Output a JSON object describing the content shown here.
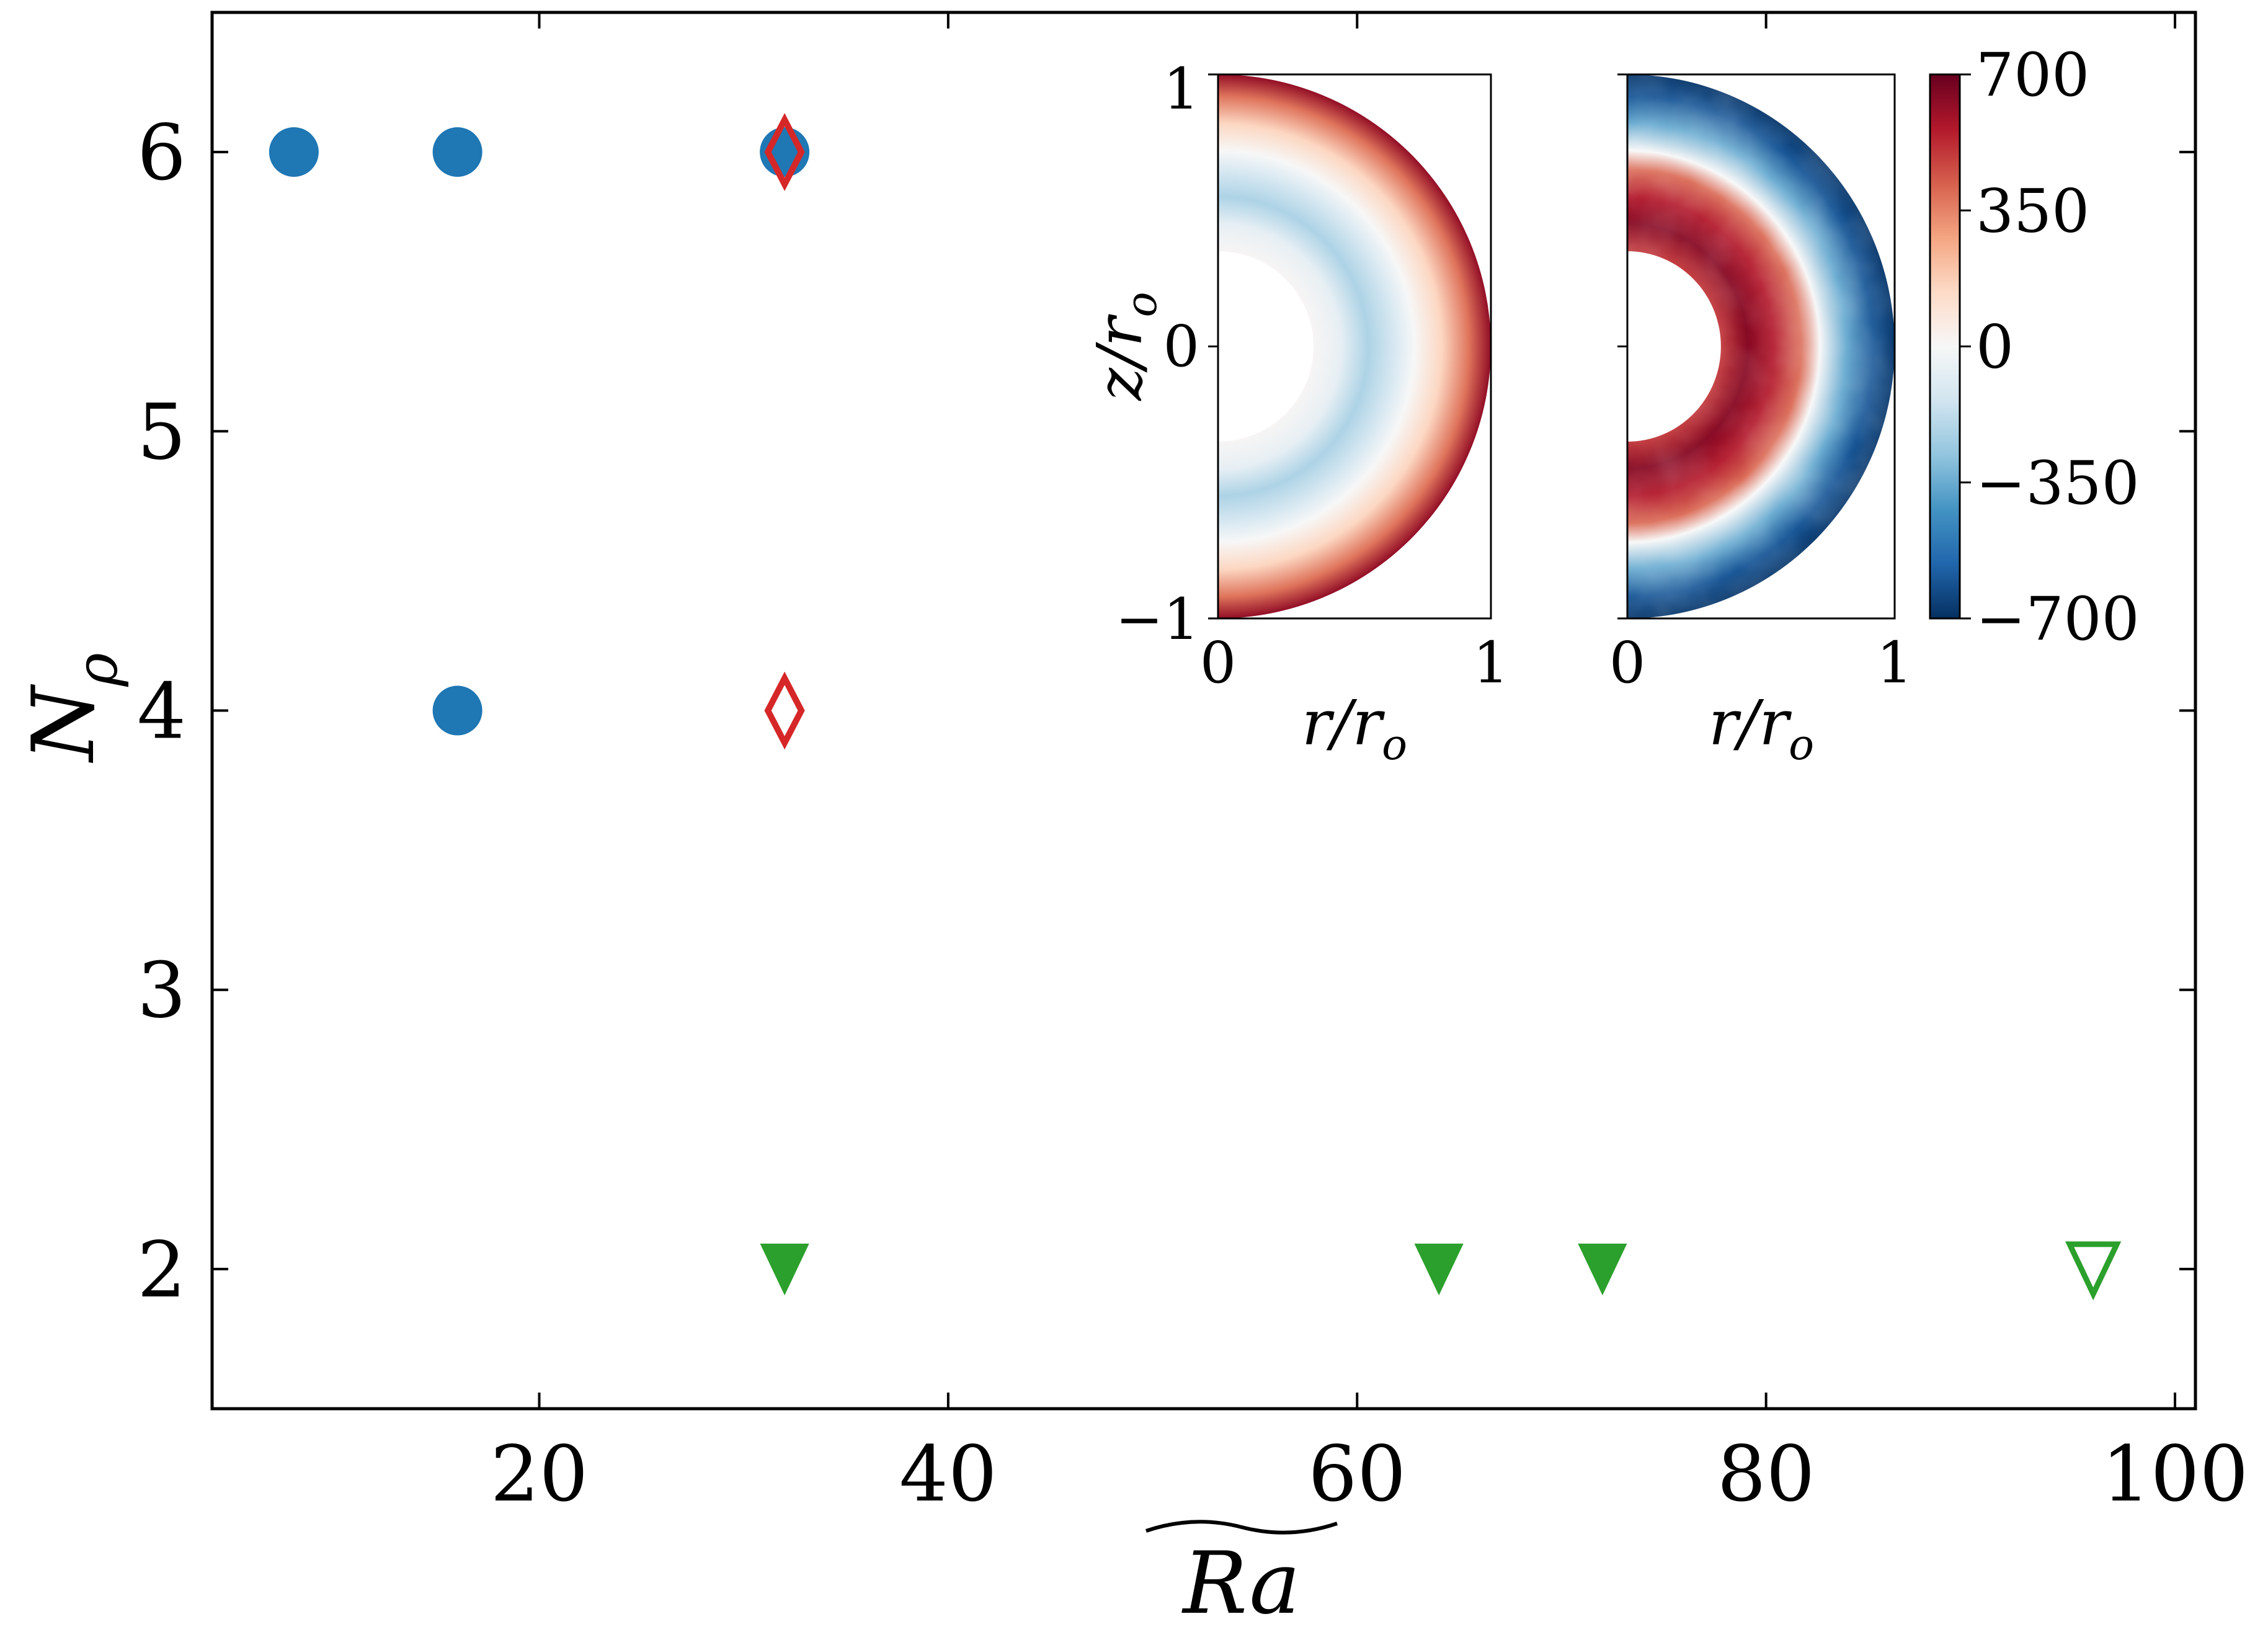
{
  "chart_data": {
    "type": "scatter",
    "title": "",
    "xlabel": "Ra",
    "xlabel_decoration": "wide tilde over label",
    "ylabel": "N",
    "ylabel_subscript": "ρ",
    "xlim": [
      4,
      101
    ],
    "ylim": [
      1.5,
      6.5
    ],
    "x_ticks": [
      20,
      40,
      60,
      80,
      100
    ],
    "x_tick_labels": [
      "20",
      "40",
      "60",
      "80",
      "100"
    ],
    "y_ticks": [
      2,
      3,
      4,
      5,
      6
    ],
    "y_tick_labels": [
      "2",
      "3",
      "4",
      "5",
      "6"
    ],
    "grid": false,
    "series": [
      {
        "name": "filled-circles",
        "marker": "circle",
        "filled": true,
        "color": "#1f77b4",
        "points": [
          {
            "x": 8,
            "y": 6
          },
          {
            "x": 16,
            "y": 6
          },
          {
            "x": 16,
            "y": 4
          },
          {
            "x": 32,
            "y": 6
          }
        ]
      },
      {
        "name": "open-diamonds",
        "marker": "diamond",
        "filled": false,
        "color": "#d62728",
        "points": [
          {
            "x": 32,
            "y": 6
          },
          {
            "x": 32,
            "y": 4
          }
        ]
      },
      {
        "name": "filled-triangles",
        "marker": "triangle-down",
        "filled": true,
        "color": "#2ca02c",
        "points": [
          {
            "x": 32,
            "y": 2
          },
          {
            "x": 64,
            "y": 2
          },
          {
            "x": 72,
            "y": 2
          }
        ]
      },
      {
        "name": "open-triangles",
        "marker": "triangle-down",
        "filled": false,
        "color": "#2ca02c",
        "points": [
          {
            "x": 96,
            "y": 2
          }
        ]
      }
    ],
    "inset": {
      "panels": [
        {
          "name": "left-meridional-panel",
          "xlim": [
            0,
            1
          ],
          "ylim": [
            -1,
            1
          ],
          "x_tick_labels": [
            "0",
            "1"
          ],
          "y_tick_labels": [
            "1",
            "0",
            "−1"
          ],
          "xlabel": "r/r",
          "xlabel_subscript": "o",
          "ylabel": "z/r",
          "ylabel_subscript": "o",
          "inner_radius": 0.35,
          "profile": [
            {
              "r": 0.35,
              "value": 10
            },
            {
              "r": 0.45,
              "value": -60
            },
            {
              "r": 0.55,
              "value": -220
            },
            {
              "r": 0.65,
              "value": -110
            },
            {
              "r": 0.72,
              "value": 0
            },
            {
              "r": 0.82,
              "value": 150
            },
            {
              "r": 0.92,
              "value": 380
            },
            {
              "r": 1.0,
              "value": 620
            }
          ]
        },
        {
          "name": "right-meridional-panel",
          "xlim": [
            0,
            1
          ],
          "ylim": [
            -1,
            1
          ],
          "x_tick_labels": [
            "0",
            "1"
          ],
          "xlabel": "r/r",
          "xlabel_subscript": "o",
          "inner_radius": 0.35,
          "profile": [
            {
              "r": 0.35,
              "value": 500
            },
            {
              "r": 0.45,
              "value": 640
            },
            {
              "r": 0.55,
              "value": 560
            },
            {
              "r": 0.65,
              "value": 400
            },
            {
              "r": 0.72,
              "value": 0
            },
            {
              "r": 0.82,
              "value": -350
            },
            {
              "r": 0.92,
              "value": -600
            },
            {
              "r": 1.0,
              "value": -680
            }
          ]
        }
      ],
      "colorbar": {
        "vmin": -700,
        "vmax": 700,
        "ticks": [
          700,
          350,
          0,
          -350,
          -700
        ],
        "tick_labels": [
          "700",
          "350",
          "0",
          "−350",
          "−700"
        ],
        "colormap": [
          "#053061",
          "#2166ac",
          "#4393c3",
          "#92c5de",
          "#d1e5f0",
          "#f7f7f7",
          "#fddbc7",
          "#f4a582",
          "#d6604d",
          "#b2182b",
          "#67001f"
        ]
      }
    }
  }
}
